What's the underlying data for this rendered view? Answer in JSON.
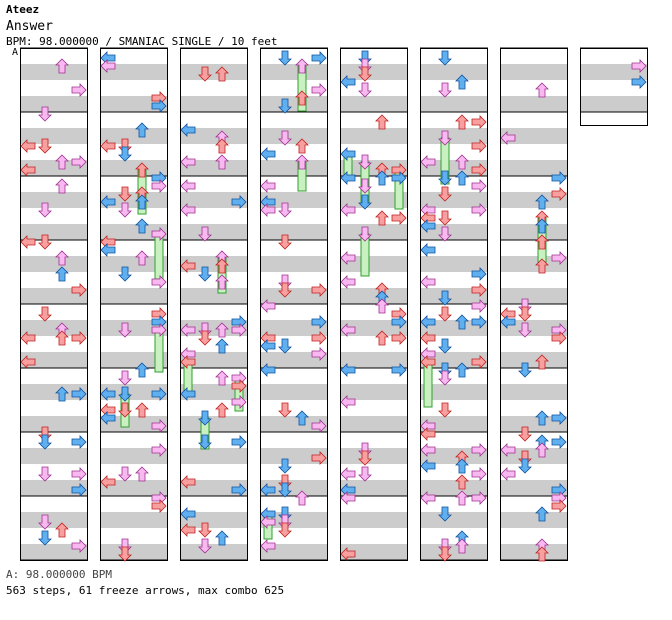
{
  "header": {
    "artist": "Ateez",
    "title": "Answer",
    "meta": "BPM: 98.000000 / SMANIAC SINGLE / 10 feet",
    "section_marker": "A"
  },
  "footer": {
    "bpm_line": "A: 98.000000 BPM",
    "stats_line": "563 steps, 61 freeze arrows, max combo 625"
  },
  "colors": {
    "red_arrow": "#f8a0a0",
    "red_stroke": "#c02020",
    "blue_arrow": "#60b0f0",
    "blue_stroke": "#1050a0",
    "pink_arrow": "#f8b8f0",
    "pink_stroke": "#a03090",
    "freeze_fill": "#c8f0c0",
    "freeze_stroke": "#30a030",
    "stripe": "#cccccc",
    "shock_yellow": "#f0f040"
  },
  "chart_data": {
    "type": "step-chart",
    "columns": 8,
    "lanes": 4,
    "measures_per_column": 7,
    "note_density_per_column": [
      0.42,
      0.38,
      0.36,
      0.38,
      0.34,
      0.36,
      0.3,
      0.1
    ],
    "freeze_count": 61,
    "steps": 563,
    "max_combo": 625
  }
}
